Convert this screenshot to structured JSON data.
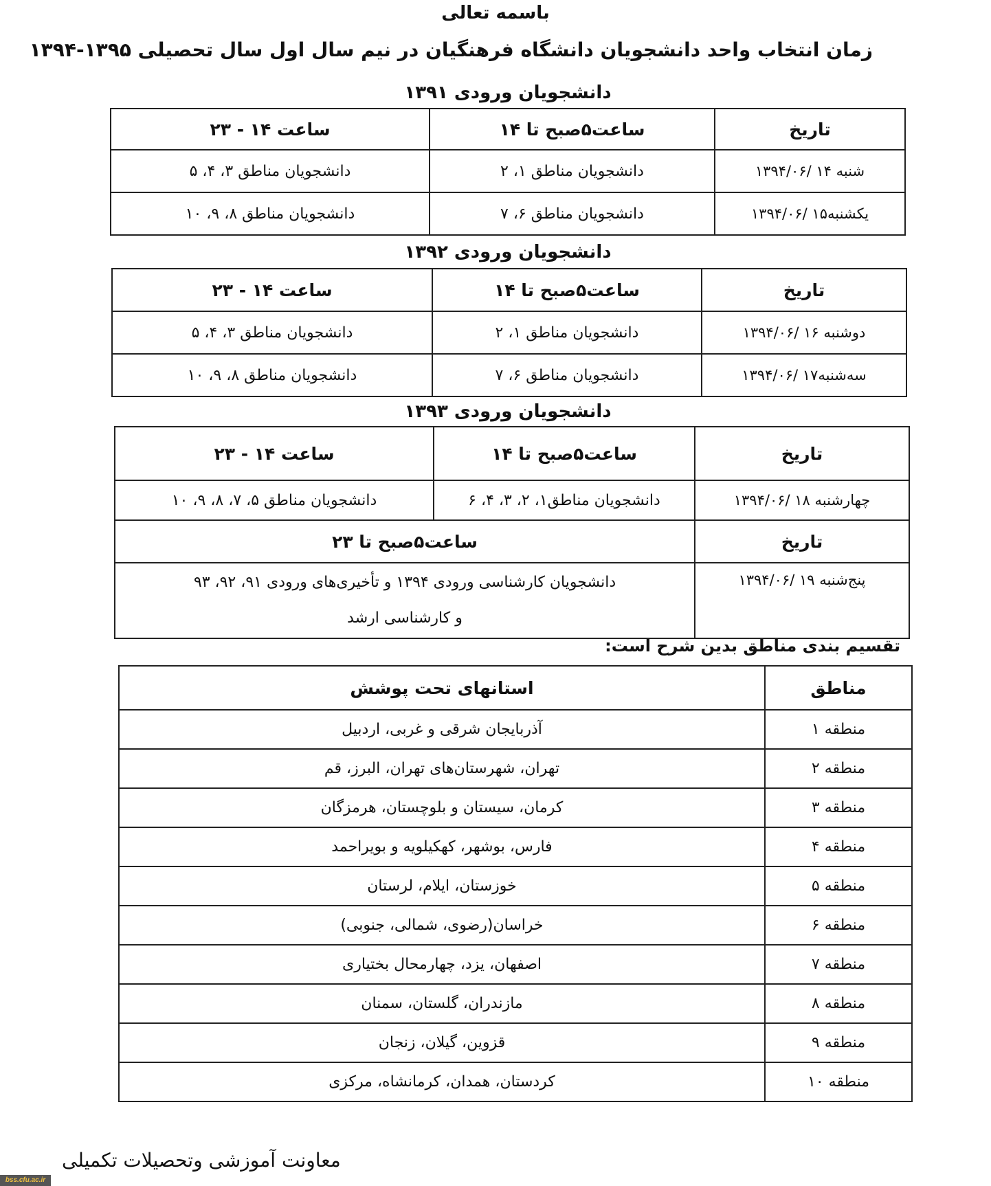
{
  "header": {
    "bismillah": "باسمه تعالی",
    "title": "زمان انتخاب واحد دانشجویان دانشگاه فرهنگیان در نیم سال اول سال تحصیلی ۱۳۹۵-۱۳۹۴"
  },
  "tables": [
    {
      "heading": "دانشجویان ورودی ۱۳۹۱",
      "headers": [
        "تاریخ",
        "ساعت۵صبح تا ۱۴",
        "ساعت ۱۴ - ۲۳"
      ],
      "rows": [
        [
          "شنبه ۱۴ /۱۳۹۴/۰۶",
          "دانشجویان مناطق ۱، ۲",
          "دانشجویان مناطق ۳، ۴، ۵"
        ],
        [
          "یکشنبه۱۵ /۱۳۹۴/۰۶",
          "دانشجویان مناطق ۶، ۷",
          "دانشجویان مناطق ۸، ۹، ۱۰"
        ]
      ]
    },
    {
      "heading": "دانشجویان ورودی ۱۳۹۲",
      "headers": [
        "تاریخ",
        "ساعت۵صبح تا ۱۴",
        "ساعت ۱۴ - ۲۳"
      ],
      "rows": [
        [
          "دوشنبه ۱۶ /۱۳۹۴/۰۶",
          "دانشجویان مناطق ۱، ۲",
          "دانشجویان مناطق ۳، ۴، ۵"
        ],
        [
          "سه‌شنبه۱۷ /۱۳۹۴/۰۶",
          "دانشجویان مناطق ۶، ۷",
          "دانشجویان مناطق ۸، ۹، ۱۰"
        ]
      ]
    },
    {
      "heading": "دانشجویان ورودی ۱۳۹۳",
      "headers": [
        "تاریخ",
        "ساعت۵صبح تا ۱۴",
        "ساعت ۱۴ - ۲۳"
      ],
      "rows": [
        [
          "چهارشنبه ۱۸ /۱۳۹۴/۰۶",
          "دانشجویان مناطق۱، ۲، ۳، ۴، ۶",
          "دانشجویان مناطق ۵، ۷، ۸، ۹، ۱۰"
        ]
      ],
      "headers2": [
        "تاریخ",
        "ساعت۵صبح تا ۲۳"
      ],
      "row2": [
        "پنج‌شنبه ۱۹ /۱۳۹۴/۰۶",
        "دانشجویان کارشناسی ورودی ۱۳۹۴ و تأخیری‌های ورودی ۹۱، ۹۲، ۹۳",
        "و کارشناسی ارشد"
      ]
    }
  ],
  "regions": {
    "intro": "تقسیم بندی مناطق بدین شرح است:",
    "headers": [
      "مناطق",
      "استانهای تحت پوشش"
    ],
    "rows": [
      [
        "منطقه ۱",
        "آذربایجان شرقی و غربی، اردبیل"
      ],
      [
        "منطقه ۲",
        "تهران، شهرستان‌های تهران، البرز، قم"
      ],
      [
        "منطقه ۳",
        "کرمان، سیستان و بلوچستان، هرمزگان"
      ],
      [
        "منطقه ۴",
        "فارس، بوشهر، کهکیلویه و بویراحمد"
      ],
      [
        "منطقه ۵",
        "خوزستان، ایلام، لرستان"
      ],
      [
        "منطقه ۶",
        "خراسان(رضوی، شمالی، جنوبی)"
      ],
      [
        "منطقه ۷",
        "اصفهان، یزد، چهارمحال بختیاری"
      ],
      [
        "منطقه ۸",
        "مازندران، گلستان، سمنان"
      ],
      [
        "منطقه ۹",
        "قزوین، گیلان، زنجان"
      ],
      [
        "منطقه ۱۰",
        "کردستان، همدان، کرمانشاه، مرکزی"
      ]
    ]
  },
  "footer": {
    "signature": "معاونت آموزشی وتحصیلات تکمیلی",
    "watermark": "bss.cfu.ac.ir"
  }
}
